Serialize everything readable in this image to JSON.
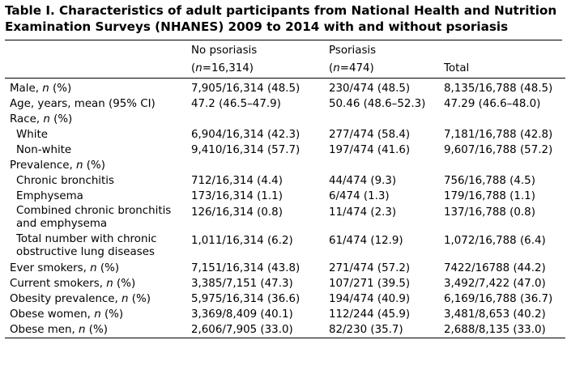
{
  "title": {
    "line1": "Table I. Characteristics of adult participants from National Health and Nutrition",
    "line2": "Examination Surveys (NHANES) 2009 to 2014 with and without psoriasis"
  },
  "header": {
    "col1": "",
    "col2_line1": "No psoriasis",
    "col2_line2": "(n=16,314)",
    "col3_line1": "Psoriasis",
    "col3_line2": "(n=474)",
    "col4": "Total"
  },
  "rows": [
    {
      "label": "Male, n (%)",
      "no_psoriasis": "7,905/16,314 (48.5)",
      "psoriasis": "230/474 (48.5)",
      "total": "8,135/16,788 (48.5)"
    },
    {
      "label": "Age, years, mean (95% CI)",
      "no_psoriasis": "47.2 (46.5–47.9)",
      "psoriasis": "50.46 (48.6–52.3)",
      "total": "47.29 (46.6–48.0)"
    },
    {
      "label": "Race, n (%)",
      "no_psoriasis": "",
      "psoriasis": "",
      "total": ""
    },
    {
      "label": "White",
      "no_psoriasis": "6,904/16,314 (42.3)",
      "psoriasis": "277/474 (58.4)",
      "total": "7,181/16,788 (42.8)"
    },
    {
      "label": "Non-white",
      "no_psoriasis": "9,410/16,314 (57.7)",
      "psoriasis": "197/474 (41.6)",
      "total": "9,607/16,788 (57.2)"
    },
    {
      "label": "Prevalence, n (%)",
      "no_psoriasis": "",
      "psoriasis": "",
      "total": ""
    },
    {
      "label": "Chronic bronchitis",
      "no_psoriasis": "712/16,314 (4.4)",
      "psoriasis": "44/474 (9.3)",
      "total": "756/16,788 (4.5)"
    },
    {
      "label": "Emphysema",
      "no_psoriasis": "173/16,314 (1.1)",
      "psoriasis": "6/474 (1.3)",
      "total": "179/16,788 (1.1)"
    },
    {
      "label": "Combined chronic bronchitis and emphysema",
      "no_psoriasis": "126/16,314 (0.8)",
      "psoriasis": "11/474 (2.3)",
      "total": "137/16,788 (0.8)"
    },
    {
      "label": "Total number with chronic obstructive lung diseases",
      "no_psoriasis": "1,011/16,314 (6.2)",
      "psoriasis": "61/474 (12.9)",
      "total": "1,072/16,788 (6.4)"
    },
    {
      "label": "Ever smokers, n (%)",
      "no_psoriasis": "7,151/16,314 (43.8)",
      "psoriasis": "271/474 (57.2)",
      "total": "7422/16788 (44.2)"
    },
    {
      "label": "Current smokers, n (%)",
      "no_psoriasis": "3,385/7,151 (47.3)",
      "psoriasis": "107/271 (39.5)",
      "total": "3,492/7,422 (47.0)"
    },
    {
      "label": "Obesity prevalence, n (%)",
      "no_psoriasis": "5,975/16,314 (36.6)",
      "psoriasis": "194/474 (40.9)",
      "total": "6,169/16,788 (36.7)"
    },
    {
      "label": "Obese women, n (%)",
      "no_psoriasis": "3,369/8,409 (40.1)",
      "psoriasis": "112/244 (45.9)",
      "total": "3,481/8,653 (40.2)"
    },
    {
      "label": "Obese men, n (%)",
      "no_psoriasis": "2,606/7,905 (33.0)",
      "psoriasis": "82/230 (35.7)",
      "total": "2,688/8,135 (33.0)"
    }
  ]
}
